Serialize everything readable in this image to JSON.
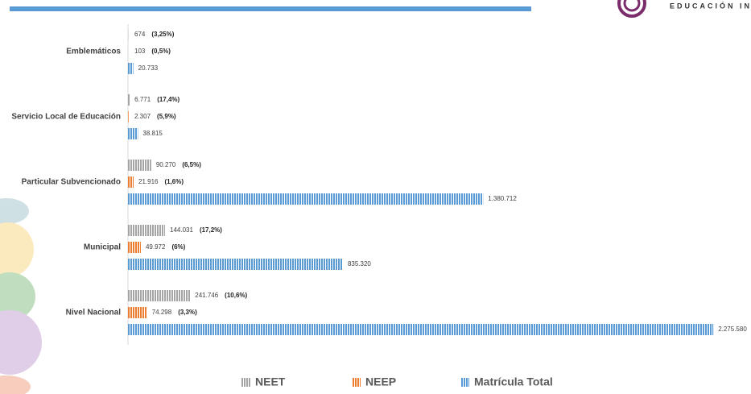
{
  "brand": "EDUCACIÓN INC",
  "chart_data": {
    "type": "bar",
    "orientation": "horizontal",
    "categories": [
      "Emblemáticos",
      "Servicio Local de Educación",
      "Particular Subvencionado",
      "Municipal",
      "Nivel Nacional"
    ],
    "series": [
      {
        "name": "NEET",
        "color": "#a5a5a5",
        "values": [
          674,
          6771,
          90270,
          144031,
          241746
        ],
        "value_labels": [
          "674",
          "6.771",
          "90.270",
          "144.031",
          "241.746"
        ],
        "percent_labels": [
          "(3,25%)",
          "(17,4%)",
          "(6,5%)",
          "(17,2%)",
          "(10,6%)"
        ]
      },
      {
        "name": "NEEP",
        "color": "#ed7d31",
        "values": [
          103,
          2307,
          21916,
          49972,
          74298
        ],
        "value_labels": [
          "103",
          "2.307",
          "21.916",
          "49.972",
          "74.298"
        ],
        "percent_labels": [
          "(0,5%)",
          "(5,9%)",
          "(1,6%)",
          "(6%)",
          "(3,3%)"
        ]
      },
      {
        "name": "Matrícula Total",
        "color": "#5b9bd5",
        "values": [
          20733,
          38815,
          1380712,
          835320,
          2275580
        ],
        "value_labels": [
          "20.733",
          "38.815",
          "1.380.712",
          "835.320",
          "2.275.580"
        ]
      }
    ],
    "xlim": [
      0,
      2300000
    ],
    "legend": "bottom"
  }
}
